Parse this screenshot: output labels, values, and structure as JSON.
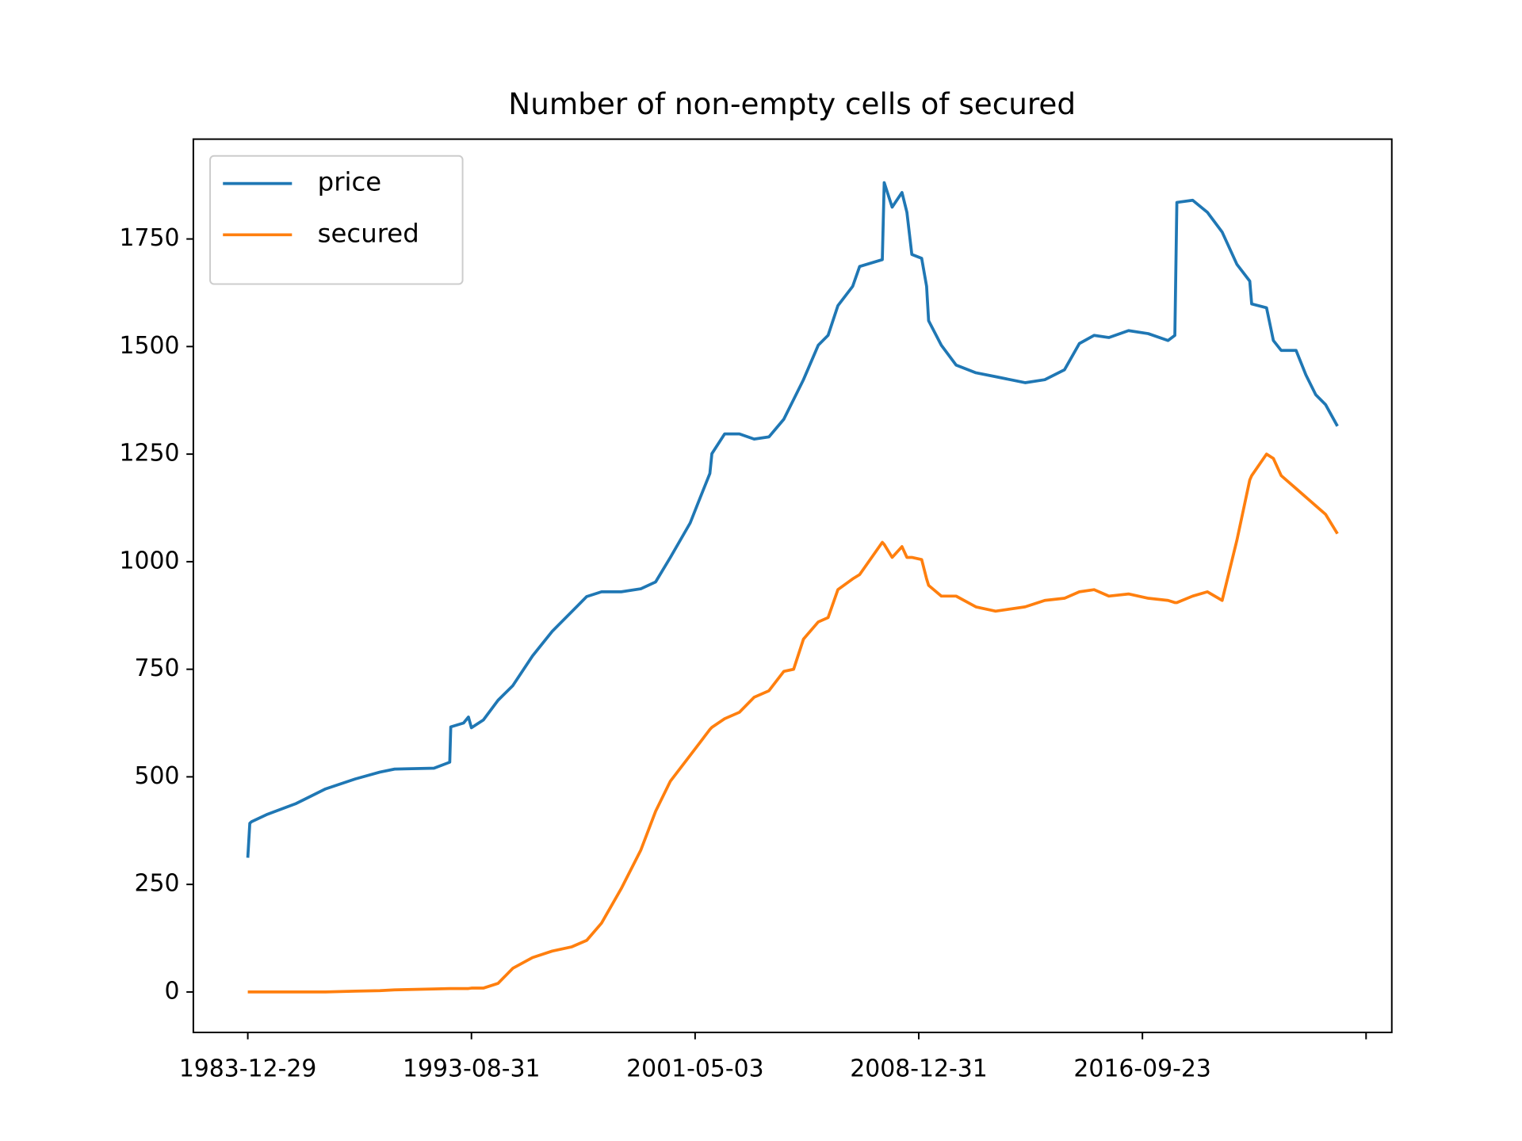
{
  "chart_data": {
    "type": "line",
    "title": "Number of non-empty cells of secured",
    "x": [
      0,
      18,
      35,
      167,
      432,
      696,
      960,
      1181,
      1313,
      1665,
      1806,
      1815,
      1929,
      1973,
      2000,
      2106,
      2238,
      2370,
      2546,
      2722,
      2898,
      3031,
      3163,
      3339,
      3515,
      3647,
      3779,
      3956,
      4044,
      4132,
      4150,
      4264,
      4396,
      4528,
      4660,
      4793,
      4881,
      4969,
      5101,
      5189,
      5277,
      5409,
      5471,
      5674,
      5691,
      5762,
      5850,
      5894,
      5938,
      6026,
      6070,
      6088,
      6202,
      6334,
      6511,
      6687,
      6951,
      7127,
      7303,
      7436,
      7568,
      7700,
      7876,
      8052,
      8229,
      8290,
      8308,
      8449,
      8581,
      8713,
      8845,
      8960,
      8977,
      9110,
      9171,
      9241,
      9374,
      9462,
      9550,
      9638,
      9744
    ],
    "series": [
      {
        "name": "price",
        "color": "#1f77b4",
        "values": [
          312,
          392,
          396,
          412,
          438,
          472,
          495,
          511,
          518,
          520,
          534,
          616,
          625,
          639,
          614,
          632,
          678,
          712,
          781,
          838,
          884,
          919,
          930,
          930,
          937,
          953,
          1010,
          1090,
          1148,
          1205,
          1251,
          1297,
          1297,
          1285,
          1290,
          1331,
          1377,
          1423,
          1503,
          1526,
          1595,
          1640,
          1686,
          1702,
          1881,
          1824,
          1858,
          1812,
          1714,
          1705,
          1640,
          1560,
          1503,
          1457,
          1439,
          1430,
          1416,
          1423,
          1446,
          1507,
          1526,
          1521,
          1537,
          1530,
          1514,
          1526,
          1835,
          1840,
          1812,
          1766,
          1691,
          1652,
          1599,
          1590,
          1514,
          1491,
          1491,
          1434,
          1388,
          1365,
          1315
        ]
      },
      {
        "name": "secured",
        "color": "#ff7f0e",
        "values": [
          0,
          0,
          0,
          0,
          0,
          0,
          2,
          3,
          5,
          7,
          8,
          8,
          8,
          8,
          9,
          9,
          20,
          55,
          80,
          95,
          105,
          120,
          160,
          240,
          330,
          420,
          490,
          550,
          580,
          610,
          615,
          635,
          650,
          685,
          700,
          745,
          750,
          820,
          860,
          870,
          935,
          960,
          970,
          1045,
          1040,
          1010,
          1035,
          1010,
          1010,
          1005,
          960,
          945,
          920,
          920,
          895,
          885,
          895,
          910,
          915,
          930,
          935,
          920,
          925,
          915,
          910,
          905,
          905,
          920,
          930,
          910,
          1050,
          1190,
          1200,
          1250,
          1240,
          1200,
          1170,
          1150,
          1130,
          1110,
          1065
        ]
      }
    ],
    "xlim": [
      -487,
      10230
    ],
    "xticks": [
      {
        "value": 0,
        "label": "1983-12-29"
      },
      {
        "value": 2000,
        "label": "1993-08-31"
      },
      {
        "value": 4000,
        "label": "2001-05-03"
      },
      {
        "value": 6000,
        "label": "2008-12-31"
      },
      {
        "value": 8000,
        "label": "2016-09-23"
      },
      {
        "value": 10000,
        "label": null
      }
    ],
    "ylim": [
      -94,
      1982
    ],
    "yticks": [
      0,
      250,
      500,
      750,
      1000,
      1250,
      1500,
      1750
    ],
    "legend": "upper left",
    "grid": false
  }
}
